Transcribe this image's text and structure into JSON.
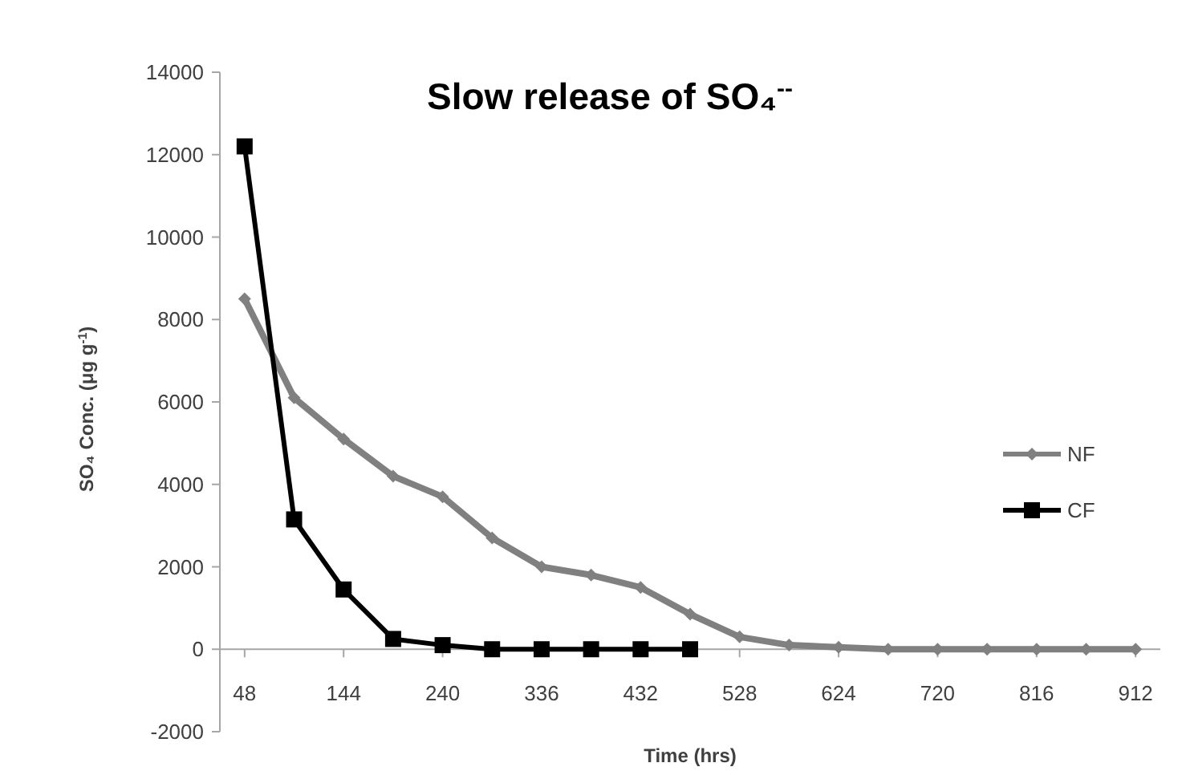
{
  "chart_data": {
    "type": "line",
    "title": "Slow release of SO₄$^{--}$",
    "xlabel": "Time (hrs)",
    "ylabel": "SO₄ Conc.  (μg g$^{-1}$)",
    "xlim": [
      24,
      936
    ],
    "xticks": [
      48,
      144,
      240,
      336,
      432,
      528,
      624,
      720,
      816,
      912
    ],
    "ylim": [
      -2000,
      14000
    ],
    "yticks": [
      -2000,
      0,
      2000,
      4000,
      6000,
      8000,
      10000,
      12000,
      14000
    ],
    "grid": false,
    "legend": "right",
    "series": [
      {
        "name": "NF",
        "color": "#808080",
        "marker": "diamond",
        "x": [
          48,
          96,
          144,
          192,
          240,
          288,
          336,
          384,
          432,
          480,
          528,
          576,
          624,
          672,
          720,
          768,
          816,
          864,
          912
        ],
        "values": [
          8500,
          6100,
          5100,
          4200,
          3700,
          2700,
          2000,
          1800,
          1500,
          850,
          300,
          100,
          50,
          0,
          0,
          0,
          0,
          0,
          0
        ]
      },
      {
        "name": "CF",
        "color": "#000000",
        "marker": "square",
        "x": [
          48,
          96,
          144,
          192,
          240,
          288,
          336,
          384,
          432,
          480
        ],
        "values": [
          12200,
          3150,
          1450,
          250,
          100,
          0,
          0,
          0,
          0,
          0
        ]
      }
    ]
  }
}
